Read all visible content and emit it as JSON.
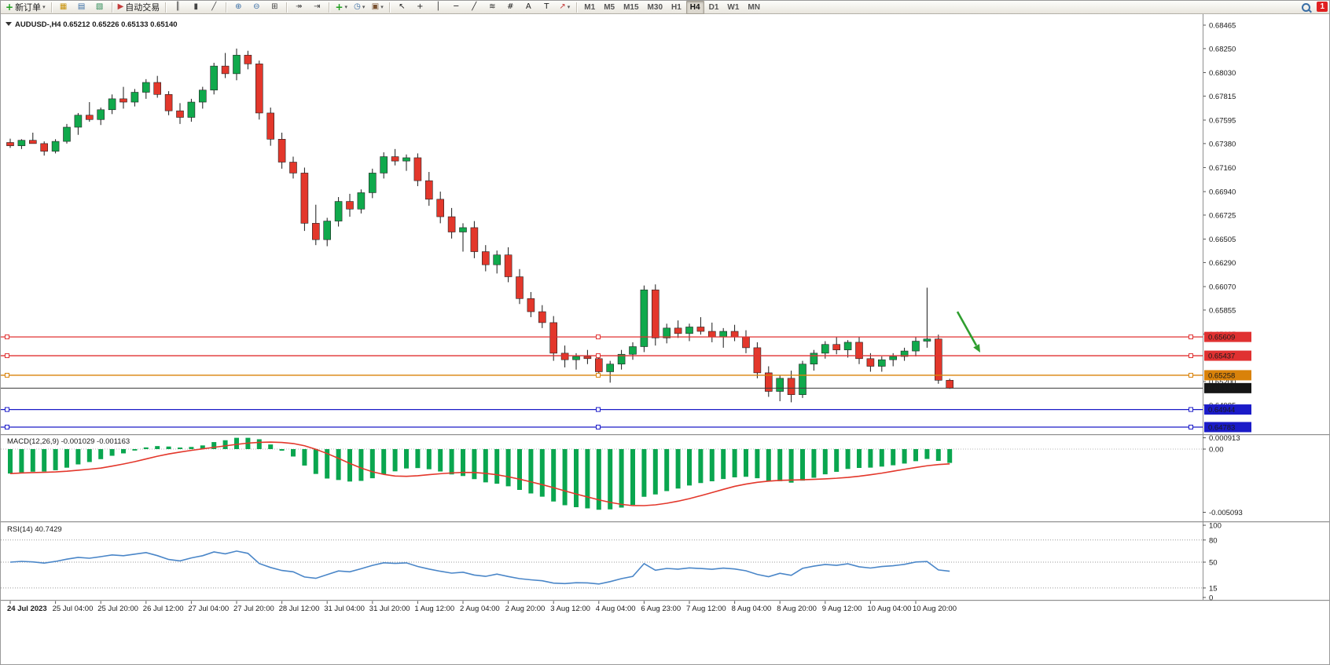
{
  "toolbar": {
    "new_order": "新订单",
    "autotrading": "自动交易",
    "timeframes": [
      "M1",
      "M5",
      "M15",
      "M30",
      "H1",
      "H4",
      "D1",
      "W1",
      "MN"
    ],
    "active_timeframe": "H4",
    "notification_badge": "1",
    "groups": [
      {
        "items": [
          {
            "name": "new-order-button",
            "glyph": "+",
            "glyph_color": "#1d9e1d",
            "bold": true,
            "label_key": "new_order",
            "caret": true
          }
        ]
      },
      {
        "items": [
          {
            "name": "market-watch-button",
            "glyph": "▦",
            "glyph_color": "#c8920a"
          },
          {
            "name": "navigator-button",
            "glyph": "▤",
            "glyph_color": "#3a6ea5"
          },
          {
            "name": "terminal-button",
            "glyph": "▧",
            "glyph_color": "#2e8b57"
          }
        ]
      },
      {
        "items": [
          {
            "name": "autotrading-button",
            "glyph": "▶",
            "glyph_color": "#c43c3c",
            "label_key": "autotrading"
          }
        ]
      },
      {
        "items": [
          {
            "name": "bar-chart-button",
            "glyph": "║",
            "glyph_color": "#444444"
          },
          {
            "name": "candlestick-chart-button",
            "glyph": "▮",
            "glyph_color": "#444444"
          },
          {
            "name": "line-chart-button",
            "glyph": "╱",
            "glyph_color": "#444444"
          }
        ]
      },
      {
        "items": [
          {
            "name": "zoom-in-button",
            "glyph": "⊕",
            "glyph_color": "#3a6ea5"
          },
          {
            "name": "zoom-out-button",
            "glyph": "⊖",
            "glyph_color": "#3a6ea5"
          },
          {
            "name": "tile-windows-button",
            "glyph": "⊞",
            "glyph_color": "#444444"
          }
        ]
      },
      {
        "items": [
          {
            "name": "auto-scroll-button",
            "glyph": "↠",
            "glyph_color": "#444444"
          },
          {
            "name": "chart-shift-button",
            "glyph": "⇥",
            "glyph_color": "#444444"
          }
        ]
      },
      {
        "items": [
          {
            "name": "indicators-button",
            "glyph": "+",
            "glyph_color": "#1d9e1d",
            "bold": true,
            "caret": true
          },
          {
            "name": "periods-button",
            "glyph": "◷",
            "glyph_color": "#3a6ea5",
            "caret": true
          },
          {
            "name": "templates-button",
            "glyph": "▣",
            "glyph_color": "#7a5230",
            "caret": true
          }
        ]
      },
      {
        "items": [
          {
            "name": "cursor-button",
            "glyph": "↖",
            "glyph_color": "#222222"
          },
          {
            "name": "crosshair-button",
            "glyph": "+",
            "glyph_color": "#222222"
          },
          {
            "name": "vertical-line-button",
            "glyph": "│",
            "glyph_color": "#222222"
          },
          {
            "name": "horizontal-line-button",
            "glyph": "─",
            "glyph_color": "#222222"
          },
          {
            "name": "trendline-button",
            "glyph": "╱",
            "glyph_color": "#222222"
          },
          {
            "name": "fibonacci-button",
            "glyph": "≋",
            "glyph_color": "#222222"
          },
          {
            "name": "grid-button",
            "glyph": "#",
            "glyph_color": "#222222"
          },
          {
            "name": "text-button",
            "glyph": "A",
            "glyph_color": "#222222"
          },
          {
            "name": "text-label-button",
            "glyph": "T",
            "glyph_color": "#222222"
          },
          {
            "name": "arrows-button",
            "glyph": "↗",
            "glyph_color": "#c43c3c",
            "caret": true
          }
        ]
      }
    ]
  },
  "chart": {
    "symbol_period": "AUDUSD-,H4",
    "ohlc_text": "0.65212 0.65226 0.65133 0.65140",
    "axis_ticks": [
      "0.68465",
      "0.68250",
      "0.68030",
      "0.67815",
      "0.67595",
      "0.67380",
      "0.67160",
      "0.66940",
      "0.66725",
      "0.66505",
      "0.66290",
      "0.66070",
      "0.65855",
      "0.65635",
      "0.65200",
      "0.64985"
    ],
    "levels": [
      {
        "price": 0.65609,
        "label": "0.65609",
        "color": "#e03131"
      },
      {
        "price": 0.65437,
        "label": "0.65437",
        "color": "#e03131"
      },
      {
        "price": 0.65258,
        "label": "0.65258",
        "color": "#d9820a"
      },
      {
        "price": 0.64944,
        "label": "0.64944",
        "color": "#1b1bc8"
      },
      {
        "price": 0.64783,
        "label": "0.64783",
        "color": "#1b1bc8"
      }
    ],
    "current_price": {
      "price": 0.6514,
      "label": "0.65140",
      "tag_color": "#161616"
    },
    "colors": {
      "up": "#10a94c",
      "down": "#e3372b",
      "wick": "#1a1a1a"
    }
  },
  "chart_data": {
    "type": "candlestick",
    "symbol": "AUDUSD",
    "timeframe": "H4",
    "y_range": [
      0.647,
      0.6852
    ],
    "x_labels": [
      "24 Jul 2023",
      "25 Jul 04:00",
      "25 Jul 20:00",
      "26 Jul 12:00",
      "27 Jul 04:00",
      "27 Jul 20:00",
      "28 Jul 12:00",
      "31 Jul 04:00",
      "31 Jul 20:00",
      "1 Aug 12:00",
      "2 Aug 04:00",
      "2 Aug 20:00",
      "3 Aug 12:00",
      "4 Aug 04:00",
      "6 Aug 23:00",
      "7 Aug 12:00",
      "8 Aug 04:00",
      "8 Aug 20:00",
      "9 Aug 12:00",
      "10 Aug 04:00",
      "10 Aug 20:00"
    ],
    "ohlc": [
      [
        0.6739,
        0.67425,
        0.6734,
        0.6736
      ],
      [
        0.6736,
        0.6742,
        0.6733,
        0.6741
      ],
      [
        0.6741,
        0.6748,
        0.6739,
        0.6738
      ],
      [
        0.6738,
        0.674,
        0.6727,
        0.6731
      ],
      [
        0.6731,
        0.6742,
        0.6729,
        0.674
      ],
      [
        0.674,
        0.6756,
        0.6738,
        0.6753
      ],
      [
        0.6753,
        0.6766,
        0.6746,
        0.6764
      ],
      [
        0.6764,
        0.6776,
        0.6758,
        0.676
      ],
      [
        0.676,
        0.6771,
        0.6755,
        0.6769
      ],
      [
        0.6769,
        0.6783,
        0.6765,
        0.6779
      ],
      [
        0.6779,
        0.679,
        0.677,
        0.6776
      ],
      [
        0.6776,
        0.6788,
        0.6772,
        0.6785
      ],
      [
        0.6785,
        0.6797,
        0.6779,
        0.6794
      ],
      [
        0.6794,
        0.68,
        0.678,
        0.6783
      ],
      [
        0.6783,
        0.6786,
        0.6764,
        0.6768
      ],
      [
        0.6768,
        0.6775,
        0.6756,
        0.6762
      ],
      [
        0.6762,
        0.6779,
        0.6758,
        0.6776
      ],
      [
        0.6776,
        0.679,
        0.677,
        0.6787
      ],
      [
        0.6787,
        0.6812,
        0.6783,
        0.6809
      ],
      [
        0.6809,
        0.6821,
        0.6798,
        0.6802
      ],
      [
        0.6802,
        0.6825,
        0.6796,
        0.6819
      ],
      [
        0.6819,
        0.6823,
        0.6806,
        0.6811
      ],
      [
        0.6811,
        0.6814,
        0.676,
        0.6766
      ],
      [
        0.6766,
        0.6771,
        0.6736,
        0.6742
      ],
      [
        0.6742,
        0.6748,
        0.6715,
        0.6721
      ],
      [
        0.6721,
        0.6726,
        0.6706,
        0.6711
      ],
      [
        0.6711,
        0.6716,
        0.6658,
        0.6665
      ],
      [
        0.6665,
        0.6682,
        0.6645,
        0.665
      ],
      [
        0.665,
        0.667,
        0.6644,
        0.6667
      ],
      [
        0.6667,
        0.6689,
        0.6662,
        0.6685
      ],
      [
        0.6685,
        0.6692,
        0.6671,
        0.6678
      ],
      [
        0.6678,
        0.6696,
        0.6674,
        0.6693
      ],
      [
        0.6693,
        0.6715,
        0.6688,
        0.6711
      ],
      [
        0.6711,
        0.673,
        0.6706,
        0.6726
      ],
      [
        0.6726,
        0.6733,
        0.6718,
        0.6722
      ],
      [
        0.6722,
        0.6728,
        0.6713,
        0.6725
      ],
      [
        0.6725,
        0.6729,
        0.6699,
        0.6704
      ],
      [
        0.6704,
        0.6712,
        0.6681,
        0.6687
      ],
      [
        0.6687,
        0.6694,
        0.6665,
        0.6671
      ],
      [
        0.6671,
        0.6679,
        0.6651,
        0.6657
      ],
      [
        0.6657,
        0.6665,
        0.6639,
        0.6661
      ],
      [
        0.6661,
        0.6667,
        0.6633,
        0.6639
      ],
      [
        0.6639,
        0.6645,
        0.6621,
        0.6627
      ],
      [
        0.6627,
        0.664,
        0.6619,
        0.6636
      ],
      [
        0.6636,
        0.6643,
        0.6611,
        0.6616
      ],
      [
        0.6616,
        0.6623,
        0.6591,
        0.6596
      ],
      [
        0.6596,
        0.6602,
        0.6579,
        0.6584
      ],
      [
        0.6584,
        0.659,
        0.6569,
        0.6574
      ],
      [
        0.6574,
        0.658,
        0.6539,
        0.6546
      ],
      [
        0.6546,
        0.6553,
        0.6533,
        0.654
      ],
      [
        0.654,
        0.6546,
        0.6531,
        0.6543
      ],
      [
        0.6543,
        0.6549,
        0.6536,
        0.6541
      ],
      [
        0.6541,
        0.6545,
        0.6524,
        0.6529
      ],
      [
        0.6529,
        0.6539,
        0.6519,
        0.6536
      ],
      [
        0.6536,
        0.6549,
        0.6531,
        0.6545
      ],
      [
        0.6545,
        0.6556,
        0.654,
        0.6552
      ],
      [
        0.6552,
        0.6608,
        0.6547,
        0.6604
      ],
      [
        0.6604,
        0.6609,
        0.6553,
        0.656
      ],
      [
        0.656,
        0.6573,
        0.6555,
        0.6569
      ],
      [
        0.6569,
        0.6576,
        0.656,
        0.6564
      ],
      [
        0.6564,
        0.6573,
        0.6557,
        0.657
      ],
      [
        0.657,
        0.6579,
        0.6563,
        0.6566
      ],
      [
        0.6566,
        0.6574,
        0.6556,
        0.6561
      ],
      [
        0.6561,
        0.6569,
        0.6551,
        0.6566
      ],
      [
        0.6566,
        0.6572,
        0.6557,
        0.6561
      ],
      [
        0.6561,
        0.6567,
        0.6546,
        0.6551
      ],
      [
        0.6551,
        0.6556,
        0.6523,
        0.6528
      ],
      [
        0.6528,
        0.6534,
        0.6506,
        0.6511
      ],
      [
        0.6511,
        0.6526,
        0.6502,
        0.6523
      ],
      [
        0.6523,
        0.653,
        0.6501,
        0.6508
      ],
      [
        0.6508,
        0.6539,
        0.6505,
        0.6536
      ],
      [
        0.6536,
        0.6549,
        0.653,
        0.6546
      ],
      [
        0.6546,
        0.6557,
        0.6541,
        0.6554
      ],
      [
        0.6554,
        0.6561,
        0.6545,
        0.6549
      ],
      [
        0.6549,
        0.6558,
        0.6542,
        0.6556
      ],
      [
        0.6556,
        0.6561,
        0.6536,
        0.6541
      ],
      [
        0.6541,
        0.6546,
        0.6529,
        0.6534
      ],
      [
        0.6534,
        0.6543,
        0.6529,
        0.654
      ],
      [
        0.654,
        0.6546,
        0.6534,
        0.6543
      ],
      [
        0.6543,
        0.6551,
        0.6539,
        0.6548
      ],
      [
        0.6548,
        0.6561,
        0.6543,
        0.6557
      ],
      [
        0.6557,
        0.6606,
        0.6551,
        0.6559
      ],
      [
        0.6559,
        0.6563,
        0.6518,
        0.65212
      ],
      [
        0.65212,
        0.65226,
        0.65133,
        0.6514
      ]
    ]
  },
  "macd": {
    "label": "MACD(12,26,9)",
    "values_text": "-0.001029 -0.001163",
    "fast": 12,
    "slow": 26,
    "signal": 9,
    "axis_labels": {
      "max": "0.000913",
      "zero": "0.00",
      "min": "-0.005093"
    },
    "colors": {
      "histogram": "#0aa64f",
      "signal": "#e3372b"
    }
  },
  "rsi": {
    "label": "RSI(14)",
    "value_text": "40.7429",
    "period": 14,
    "levels": [
      "100",
      "80",
      "50",
      "15",
      "0"
    ],
    "dashed_levels": [
      80,
      50,
      15
    ],
    "color": "#4a86c8"
  },
  "annotation_arrow": {
    "color": "#2f9e2f"
  }
}
